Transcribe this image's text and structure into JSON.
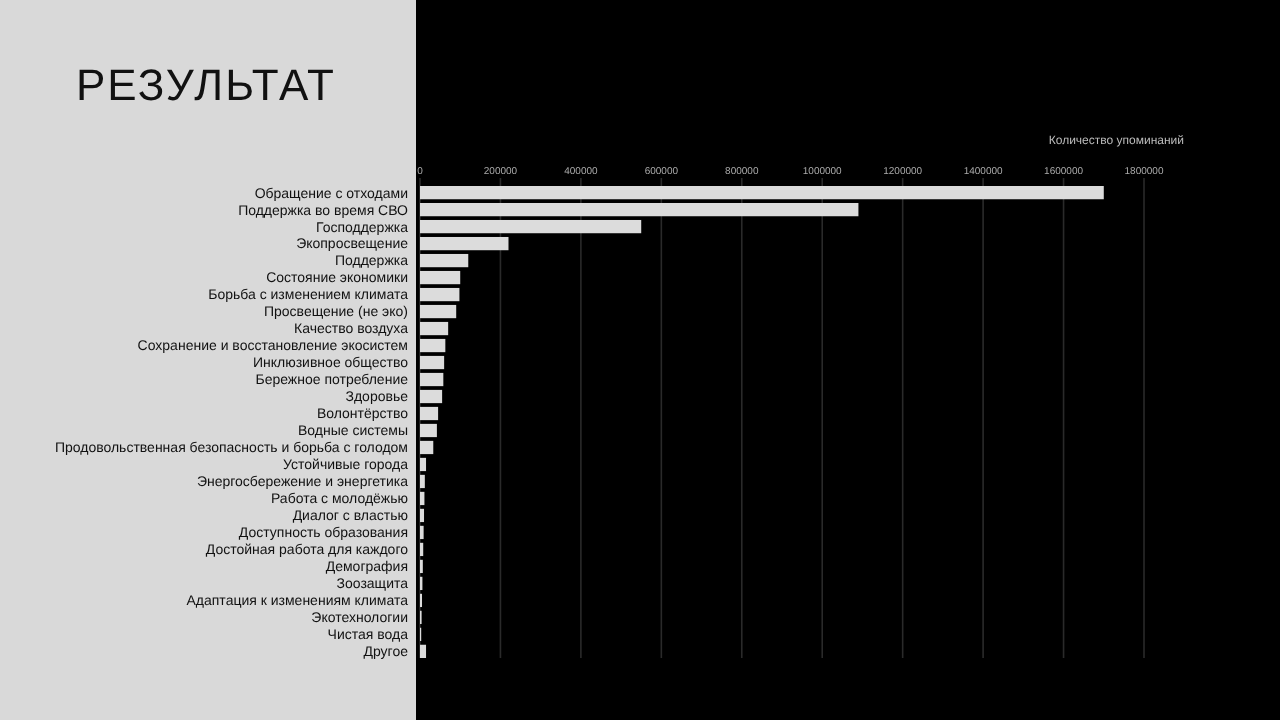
{
  "chart_data": {
    "type": "bar",
    "orientation": "horizontal",
    "title": "РЕЗУЛЬТАТ",
    "xlabel": "Количество упоминаний",
    "categories": [
      "Обращение с отходами",
      "Поддержка во время СВО",
      "Господдержка",
      "Экопросвещение",
      "Поддержка",
      "Состояние экономики",
      "Борьба с изменением климата",
      "Просвещение (не эко)",
      "Качество воздуха",
      "Сохранение и восстановление экосистем",
      "Инклюзивное общество",
      "Бережное потребление",
      "Здоровье",
      "Волонтёрство",
      "Водные системы",
      "Продовольственная безопасность и борьба с голодом",
      "Устойчивые города",
      "Энергосбережение и энергетика",
      "Работа с молодёжью",
      "Диалог с властью",
      "Доступность образования",
      "Достойная работа для каждого",
      "Демография",
      "Зоозащита",
      "Адаптация к изменениям климата",
      "Экотехнологии",
      "Чистая вода",
      "Другое"
    ],
    "values": [
      1700000,
      1090000,
      550000,
      220000,
      120000,
      100000,
      98000,
      90000,
      70000,
      63000,
      60000,
      58000,
      55000,
      45000,
      42000,
      33000,
      15000,
      12000,
      11000,
      10000,
      9000,
      8000,
      7000,
      6000,
      5000,
      4000,
      3000,
      15000
    ],
    "color": "#dcdcdc",
    "xlim": [
      0,
      1800000
    ],
    "xticks": [
      0,
      200000,
      400000,
      600000,
      800000,
      1000000,
      1200000,
      1400000,
      1600000,
      1800000
    ],
    "grid": "x"
  }
}
